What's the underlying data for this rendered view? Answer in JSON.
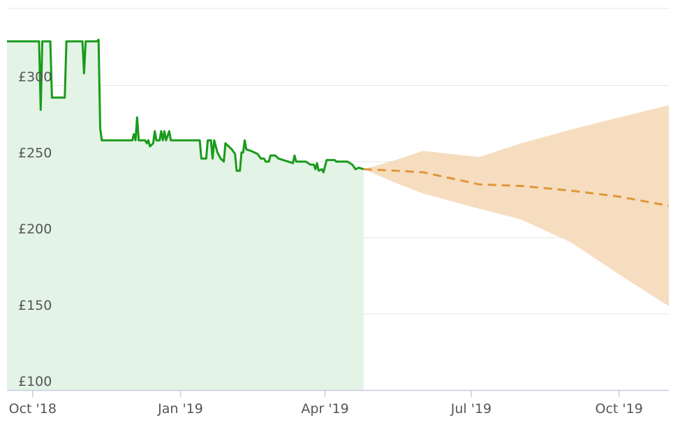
{
  "chart_data": {
    "type": "line",
    "title": "",
    "xlabel": "",
    "ylabel": "",
    "ylim": [
      100,
      330
    ],
    "xlim": [
      "2018-09-15",
      "2019-11-01"
    ],
    "y_ticks": [
      {
        "value": 300,
        "label": "£300"
      },
      {
        "value": 250,
        "label": "£250"
      },
      {
        "value": 200,
        "label": "£200"
      },
      {
        "value": 150,
        "label": "£150"
      },
      {
        "value": 100,
        "label": "£100"
      }
    ],
    "x_ticks": [
      {
        "date": "2018-10-01",
        "label": "Oct '18"
      },
      {
        "date": "2019-01-01",
        "label": "Jan '19"
      },
      {
        "date": "2019-04-01",
        "label": "Apr '19"
      },
      {
        "date": "2019-07-01",
        "label": "Jul '19"
      },
      {
        "date": "2019-10-01",
        "label": "Oct '19"
      }
    ],
    "grid": true,
    "series": [
      {
        "kind": "history",
        "color": "#1a9a1a",
        "fill": "#e3f3e6",
        "points": [
          [
            "2018-09-15",
            329
          ],
          [
            "2018-10-05",
            329
          ],
          [
            "2018-10-06",
            284
          ],
          [
            "2018-10-07",
            329
          ],
          [
            "2018-10-12",
            329
          ],
          [
            "2018-10-13",
            292
          ],
          [
            "2018-10-21",
            292
          ],
          [
            "2018-10-22",
            329
          ],
          [
            "2018-11-01",
            329
          ],
          [
            "2018-11-02",
            308
          ],
          [
            "2018-11-03",
            329
          ],
          [
            "2018-11-10",
            329
          ],
          [
            "2018-11-11",
            330
          ],
          [
            "2018-11-12",
            272
          ],
          [
            "2018-11-13",
            264
          ],
          [
            "2018-12-02",
            264
          ],
          [
            "2018-12-03",
            268
          ],
          [
            "2018-12-04",
            264
          ],
          [
            "2018-12-05",
            279
          ],
          [
            "2018-12-06",
            264
          ],
          [
            "2018-12-10",
            264
          ],
          [
            "2018-12-11",
            262
          ],
          [
            "2018-12-12",
            264
          ],
          [
            "2018-12-13",
            260
          ],
          [
            "2018-12-15",
            262
          ],
          [
            "2018-12-16",
            270
          ],
          [
            "2018-12-17",
            264
          ],
          [
            "2018-12-19",
            264
          ],
          [
            "2018-12-20",
            270
          ],
          [
            "2018-12-21",
            264
          ],
          [
            "2018-12-22",
            270
          ],
          [
            "2018-12-23",
            264
          ],
          [
            "2018-12-25",
            270
          ],
          [
            "2018-12-26",
            264
          ],
          [
            "2019-01-13",
            264
          ],
          [
            "2019-01-14",
            252
          ],
          [
            "2019-01-17",
            252
          ],
          [
            "2019-01-18",
            264
          ],
          [
            "2019-01-20",
            264
          ],
          [
            "2019-01-21",
            252
          ],
          [
            "2019-01-22",
            264
          ],
          [
            "2019-01-24",
            256
          ],
          [
            "2019-01-26",
            252
          ],
          [
            "2019-01-28",
            250
          ],
          [
            "2019-01-29",
            262
          ],
          [
            "2019-01-31",
            260
          ],
          [
            "2019-02-02",
            258
          ],
          [
            "2019-02-04",
            255
          ],
          [
            "2019-02-05",
            244
          ],
          [
            "2019-02-07",
            244
          ],
          [
            "2019-02-08",
            256
          ],
          [
            "2019-02-09",
            256
          ],
          [
            "2019-02-10",
            264
          ],
          [
            "2019-02-11",
            258
          ],
          [
            "2019-02-14",
            257
          ],
          [
            "2019-02-16",
            256
          ],
          [
            "2019-02-18",
            255
          ],
          [
            "2019-02-20",
            252
          ],
          [
            "2019-02-22",
            252
          ],
          [
            "2019-02-23",
            250
          ],
          [
            "2019-02-25",
            250
          ],
          [
            "2019-02-26",
            254
          ],
          [
            "2019-03-01",
            254
          ],
          [
            "2019-03-03",
            252
          ],
          [
            "2019-03-06",
            251
          ],
          [
            "2019-03-09",
            250
          ],
          [
            "2019-03-12",
            249
          ],
          [
            "2019-03-13",
            254
          ],
          [
            "2019-03-14",
            250
          ],
          [
            "2019-03-20",
            250
          ],
          [
            "2019-03-23",
            248
          ],
          [
            "2019-03-25",
            248
          ],
          [
            "2019-03-26",
            245
          ],
          [
            "2019-03-27",
            249
          ],
          [
            "2019-03-28",
            244
          ],
          [
            "2019-03-30",
            245
          ],
          [
            "2019-03-31",
            243
          ],
          [
            "2019-04-02",
            251
          ],
          [
            "2019-04-07",
            251
          ],
          [
            "2019-04-08",
            250
          ],
          [
            "2019-04-15",
            250
          ],
          [
            "2019-04-18",
            248
          ],
          [
            "2019-04-20",
            245
          ],
          [
            "2019-04-22",
            246
          ],
          [
            "2019-04-25",
            245
          ]
        ]
      },
      {
        "kind": "forecast",
        "color": "#e0963a",
        "band_color": "#f6ddbf",
        "points": [
          [
            "2019-04-25",
            245
          ],
          [
            "2019-05-15",
            244
          ],
          [
            "2019-06-01",
            243
          ],
          [
            "2019-07-06",
            235
          ],
          [
            "2019-08-01",
            234
          ],
          [
            "2019-09-01",
            231
          ],
          [
            "2019-10-01",
            227
          ],
          [
            "2019-11-01",
            221
          ]
        ],
        "upper": [
          [
            "2019-04-25",
            245
          ],
          [
            "2019-05-15",
            251
          ],
          [
            "2019-06-01",
            257
          ],
          [
            "2019-07-06",
            253
          ],
          [
            "2019-08-01",
            262
          ],
          [
            "2019-09-01",
            271
          ],
          [
            "2019-10-01",
            279
          ],
          [
            "2019-11-01",
            287
          ]
        ],
        "lower": [
          [
            "2019-04-25",
            245
          ],
          [
            "2019-05-15",
            236
          ],
          [
            "2019-06-01",
            229
          ],
          [
            "2019-07-06",
            219
          ],
          [
            "2019-08-01",
            212
          ],
          [
            "2019-09-01",
            197
          ],
          [
            "2019-10-01",
            176
          ],
          [
            "2019-11-01",
            155
          ]
        ]
      }
    ]
  }
}
